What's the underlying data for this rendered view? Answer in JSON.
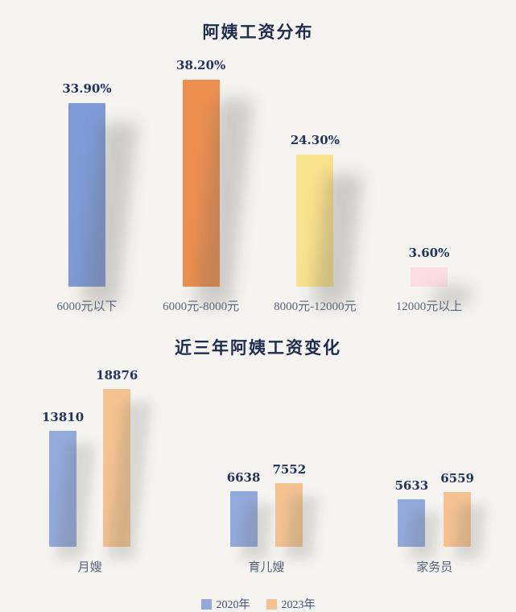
{
  "page": {
    "background": "#f5f4f1"
  },
  "chart_data": [
    {
      "type": "bar",
      "title": "阿姨工资分布",
      "categories": [
        "6000元以下",
        "6000元-8000元",
        "8000元-12000元",
        "12000元以上"
      ],
      "values": [
        33.9,
        38.2,
        24.3,
        3.6
      ],
      "value_labels": [
        "33.90%",
        "38.20%",
        "24.30%",
        "3.60%"
      ],
      "bar_colors": [
        "#7e9bd7",
        "#ee8f4f",
        "#f9e28c",
        "#fcdde5"
      ],
      "xlabel": "",
      "ylabel": "",
      "ylim": [
        0,
        40
      ],
      "grid": false,
      "legend_position": "none"
    },
    {
      "type": "bar",
      "title": "近三年阿姨工资变化",
      "categories": [
        "月嫂",
        "育儿嫂",
        "家务员"
      ],
      "series": [
        {
          "name": "2020年",
          "color": "#92a9da",
          "values": [
            13810,
            6638,
            5633
          ]
        },
        {
          "name": "2023年",
          "color": "#f4c291",
          "values": [
            18876,
            7552,
            6559
          ]
        }
      ],
      "xlabel": "",
      "ylabel": "",
      "ylim": [
        0,
        20000
      ],
      "grid": false,
      "legend_position": "bottom"
    }
  ]
}
